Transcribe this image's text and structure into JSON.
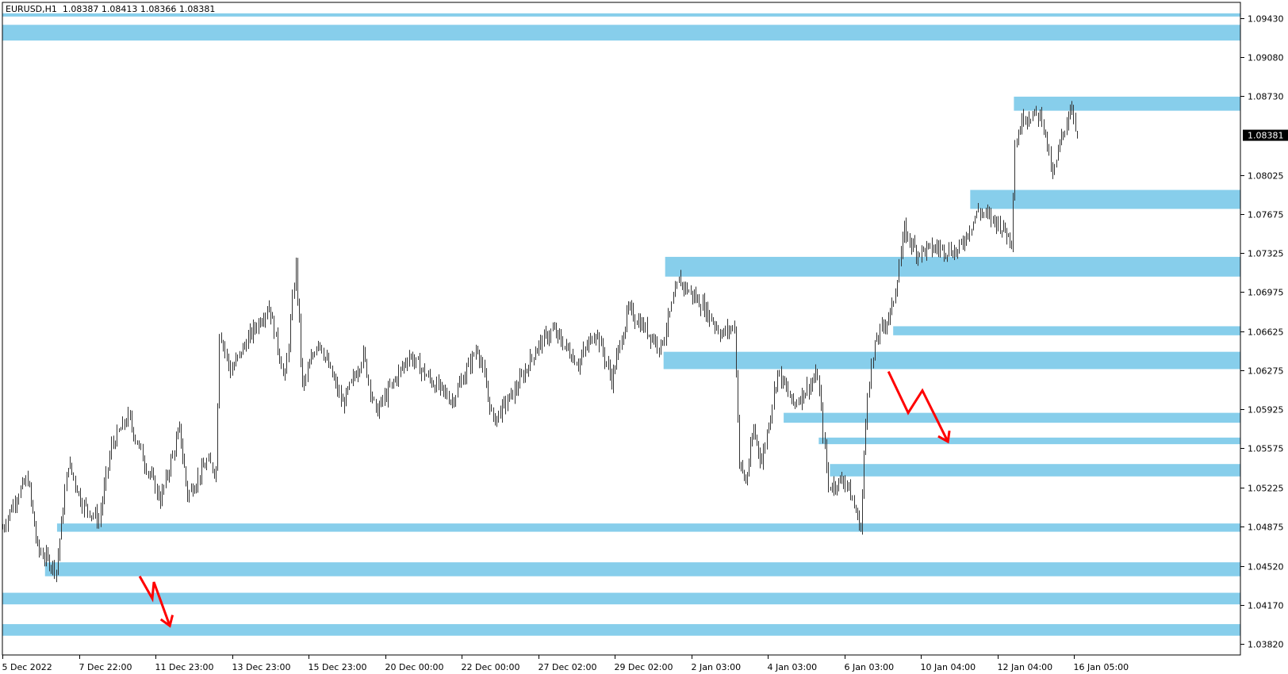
{
  "header": {
    "symbol": "EURUSD,H1",
    "ohlc": "1.08387 1.08413 1.08366 1.08381"
  },
  "chart_data": {
    "type": "bar",
    "symbol": "EURUSD",
    "timeframe": "H1",
    "current_price": "1.08381",
    "ylim": [
      1.036,
      1.096
    ],
    "y_ticks": [
      "1.09430",
      "1.09080",
      "1.08730",
      "1.08025",
      "1.07675",
      "1.07325",
      "1.06975",
      "1.06625",
      "1.06275",
      "1.05925",
      "1.05575",
      "1.05225",
      "1.04875",
      "1.04520",
      "1.04170",
      "1.03820"
    ],
    "x_ticks": [
      {
        "label": "5 Dec 2022",
        "t": "2022-12-05T00:00"
      },
      {
        "label": "7 Dec 22:00",
        "t": "2022-12-07T22:00"
      },
      {
        "label": "11 Dec 23:00",
        "t": "2022-12-11T23:00"
      },
      {
        "label": "13 Dec 23:00",
        "t": "2022-12-13T23:00"
      },
      {
        "label": "15 Dec 23:00",
        "t": "2022-12-15T23:00"
      },
      {
        "label": "20 Dec 00:00",
        "t": "2022-12-20T00:00"
      },
      {
        "label": "22 Dec 00:00",
        "t": "2022-12-22T00:00"
      },
      {
        "label": "27 Dec 02:00",
        "t": "2022-12-27T02:00"
      },
      {
        "label": "29 Dec 02:00",
        "t": "2022-12-29T02:00"
      },
      {
        "label": "2 Jan 03:00",
        "t": "2023-01-02T03:00"
      },
      {
        "label": "4 Jan 03:00",
        "t": "2023-01-04T03:00"
      },
      {
        "label": "6 Jan 03:00",
        "t": "2023-01-06T03:00"
      },
      {
        "label": "10 Jan 04:00",
        "t": "2023-01-10T04:00"
      },
      {
        "label": "12 Jan 04:00",
        "t": "2023-01-12T04:00"
      },
      {
        "label": "16 Jan 05:00",
        "t": "2023-01-16T05:00"
      }
    ],
    "price_path": [
      [
        "2022-12-05T00:00",
        1.04857
      ],
      [
        "2022-12-05T13:00",
        1.05153
      ],
      [
        "2022-12-05T23:00",
        1.05301
      ],
      [
        "2022-12-06T08:00",
        1.04672
      ],
      [
        "2022-12-07T01:00",
        1.04487
      ],
      [
        "2022-12-07T12:00",
        1.05449
      ],
      [
        "2022-12-08T02:00",
        1.05079
      ],
      [
        "2022-12-08T23:00",
        1.04931
      ],
      [
        "2022-12-09T15:00",
        1.05597
      ],
      [
        "2022-12-10T12:00",
        1.05856
      ],
      [
        "2022-12-11T09:00",
        1.05449
      ],
      [
        "2022-12-12T02:00",
        1.05116
      ],
      [
        "2022-12-12T14:00",
        1.05745
      ],
      [
        "2022-12-12T19:00",
        1.05153
      ],
      [
        "2022-12-13T07:00",
        1.05449
      ],
      [
        "2022-12-13T13:00",
        1.05375
      ],
      [
        "2022-12-13T15:00",
        1.06633
      ],
      [
        "2022-12-13T22:00",
        1.06263
      ],
      [
        "2022-12-14T09:00",
        1.06559
      ],
      [
        "2022-12-14T22:00",
        1.06855
      ],
      [
        "2022-12-15T08:00",
        1.06189
      ],
      [
        "2022-12-15T15:00",
        1.07225
      ],
      [
        "2022-12-15T19:00",
        1.06115
      ],
      [
        "2022-12-16T11:00",
        1.06559
      ],
      [
        "2022-12-17T18:00",
        1.05967
      ],
      [
        "2022-12-18T20:00",
        1.06411
      ],
      [
        "2022-12-19T12:00",
        1.05893
      ],
      [
        "2022-12-20T15:00",
        1.06411
      ],
      [
        "2022-12-21T04:00",
        1.06189
      ],
      [
        "2022-12-21T18:00",
        1.06004
      ],
      [
        "2022-12-23T01:00",
        1.06485
      ],
      [
        "2022-12-24T02:00",
        1.05819
      ],
      [
        "2022-12-25T15:00",
        1.06115
      ],
      [
        "2022-12-27T00:00",
        1.06485
      ],
      [
        "2022-12-27T11:00",
        1.06633
      ],
      [
        "2022-12-28T03:00",
        1.06337
      ],
      [
        "2022-12-28T14:00",
        1.06633
      ],
      [
        "2022-12-29T00:00",
        1.06189
      ],
      [
        "2022-12-29T19:00",
        1.06818
      ],
      [
        "2022-12-31T12:00",
        1.06485
      ],
      [
        "2023-01-01T11:00",
        1.07077
      ],
      [
        "2023-01-02T10:00",
        1.06855
      ],
      [
        "2023-01-02T22:00",
        1.06596
      ],
      [
        "2023-01-03T06:00",
        1.0667
      ],
      [
        "2023-01-03T09:00",
        1.05449
      ],
      [
        "2023-01-03T13:00",
        1.05264
      ],
      [
        "2023-01-03T18:00",
        1.05745
      ],
      [
        "2023-01-03T23:00",
        1.05449
      ],
      [
        "2023-01-04T09:00",
        1.06263
      ],
      [
        "2023-01-04T19:00",
        1.05967
      ],
      [
        "2023-01-05T10:00",
        1.06226
      ],
      [
        "2023-01-05T17:00",
        1.05227
      ],
      [
        "2023-01-06T04:00",
        1.05301
      ],
      [
        "2023-01-07T00:00",
        1.04857
      ],
      [
        "2023-01-07T08:00",
        1.06115
      ],
      [
        "2023-01-07T20:00",
        1.06559
      ],
      [
        "2023-01-08T15:00",
        1.06818
      ],
      [
        "2023-01-09T07:00",
        1.07521
      ],
      [
        "2023-01-09T22:00",
        1.07336
      ],
      [
        "2023-01-10T14:00",
        1.07373
      ],
      [
        "2023-01-11T03:00",
        1.07336
      ],
      [
        "2023-01-11T16:00",
        1.07706
      ],
      [
        "2023-01-12T05:00",
        1.07595
      ],
      [
        "2023-01-12T22:00",
        1.07447
      ],
      [
        "2023-01-13T02:00",
        1.08298
      ],
      [
        "2023-01-13T13:00",
        1.08557
      ],
      [
        "2023-01-14T12:00",
        1.08557
      ],
      [
        "2023-01-15T02:00",
        1.08002
      ],
      [
        "2023-01-15T11:00",
        1.08298
      ],
      [
        "2023-01-16T02:00",
        1.08668
      ],
      [
        "2023-01-16T07:00",
        1.08381
      ]
    ],
    "zones": [
      {
        "start": null,
        "top": 1.09474,
        "bottom": 1.09445
      },
      {
        "start": null,
        "top": 1.09371,
        "bottom": 1.0923
      },
      {
        "start": "2023-01-13T01:00",
        "top": 1.08727,
        "bottom": 1.08601
      },
      {
        "start": "2023-01-11T11:00",
        "top": 1.07891,
        "bottom": 1.07721
      },
      {
        "start": "2022-12-31T18:00",
        "top": 1.07291,
        "bottom": 1.07114
      },
      {
        "start": "2023-01-08T17:00",
        "top": 1.06669,
        "bottom": 1.06588
      },
      {
        "start": "2022-12-31T16:00",
        "top": 1.0644,
        "bottom": 1.06285
      },
      {
        "start": "2023-01-04T13:00",
        "top": 1.05893,
        "bottom": 1.05804
      },
      {
        "start": "2023-01-05T11:00",
        "top": 1.05671,
        "bottom": 1.05612
      },
      {
        "start": "2023-01-05T18:00",
        "top": 1.05434,
        "bottom": 1.05323
      },
      {
        "start": "2022-12-07T02:00",
        "top": 1.04901,
        "bottom": 1.04827
      },
      {
        "start": "2022-12-06T15:00",
        "top": 1.04553,
        "bottom": 1.04428
      },
      {
        "start": null,
        "top": 1.0428,
        "bottom": 1.04176
      },
      {
        "start": null,
        "top": 1.03999,
        "bottom": 1.03895
      }
    ],
    "zone_color": "#87CEEB",
    "arrows": [
      {
        "color": "#FF0000",
        "points": [
          [
            "2023-01-08T11:00",
            1.06263
          ],
          [
            "2023-01-09T12:00",
            1.05893
          ],
          [
            "2023-01-10T05:00",
            1.06093
          ],
          [
            "2023-01-10T21:00",
            1.05634
          ]
        ]
      },
      {
        "color": "#FF0000",
        "points": [
          [
            "2022-12-11T03:00",
            1.04428
          ],
          [
            "2022-12-11T19:00",
            1.04228
          ],
          [
            "2022-12-11T21:00",
            1.04376
          ],
          [
            "2022-12-12T08:00",
            1.03984
          ]
        ]
      }
    ],
    "bar_color": "#333333"
  }
}
